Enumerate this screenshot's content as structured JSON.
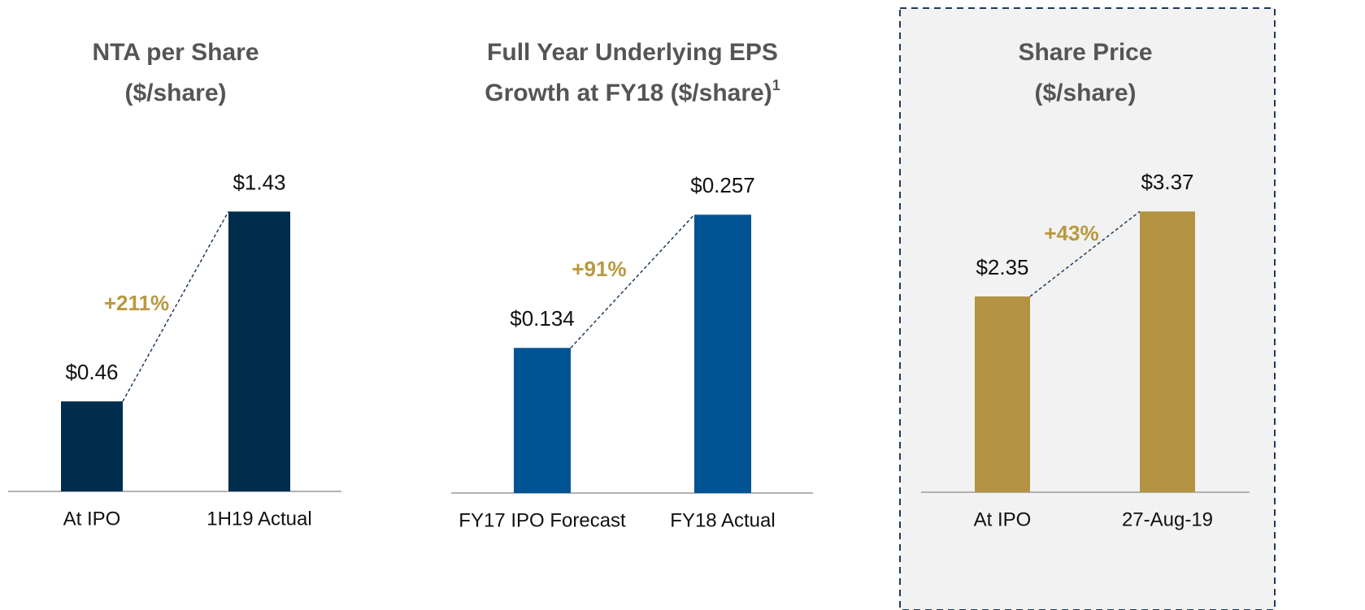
{
  "chart_data": [
    {
      "type": "bar",
      "title": [
        "NTA per Share",
        "($/share)"
      ],
      "categories": [
        "At IPO",
        "1H19 Actual"
      ],
      "values": [
        0.46,
        1.43
      ],
      "value_labels": [
        "$0.46",
        "$1.43"
      ],
      "color": "#012d4c",
      "ylim": [
        0,
        1.66
      ],
      "annotation": "+211%",
      "annotation_color": "#b8993e"
    },
    {
      "type": "bar",
      "title": [
        "Full Year Underlying EPS",
        "Growth at FY18 ($/share)"
      ],
      "title_superscript": "1",
      "categories": [
        "FY17 IPO Forecast",
        "FY18 Actual"
      ],
      "values": [
        0.134,
        0.257
      ],
      "value_labels": [
        "$0.134",
        "$0.257"
      ],
      "color": "#005494",
      "ylim": [
        0,
        0.3
      ],
      "annotation": "+91%",
      "annotation_color": "#b8993e"
    },
    {
      "type": "bar",
      "title": [
        "Share Price",
        "($/share)"
      ],
      "categories": [
        "At IPO",
        "27-Aug-19"
      ],
      "values": [
        2.35,
        3.37
      ],
      "value_labels": [
        "$2.35",
        "$3.37"
      ],
      "color": "#b39341",
      "ylim": [
        0,
        3.9
      ],
      "annotation": "+43%",
      "annotation_color": "#b8993e"
    }
  ]
}
